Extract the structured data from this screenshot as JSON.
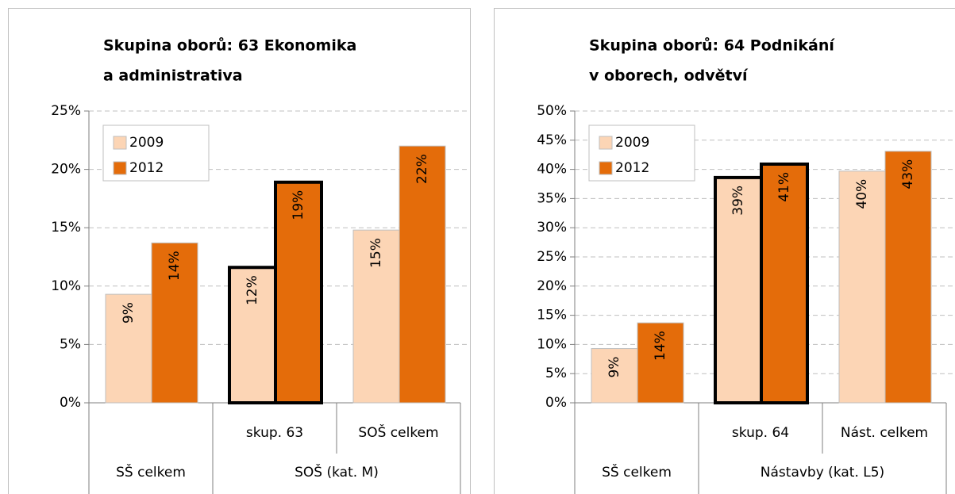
{
  "chart_data": [
    {
      "type": "bar",
      "title": [
        "Skupina oborů: 63 Ekonomika",
        "a administrativa"
      ],
      "categories": [
        null,
        "skup. 63",
        "SOŠ celkem"
      ],
      "groups": [
        {
          "label": "SŠ celkem",
          "size": 1
        },
        {
          "label": "SOŠ (kat. M)",
          "size": 2
        }
      ],
      "series": [
        {
          "name": "2009",
          "color": "#fcd5b5",
          "values": [
            9.3,
            11.6,
            14.8
          ],
          "value_labels": [
            "9%",
            "12%",
            "15%"
          ]
        },
        {
          "name": "2012",
          "color": "#e46c0a",
          "values": [
            13.7,
            18.9,
            22.0
          ],
          "value_labels": [
            "14%",
            "19%",
            "22%"
          ]
        }
      ],
      "highlight": [
        1
      ],
      "ylim": [
        0,
        25
      ],
      "yticks": [
        {
          "value": 0,
          "label": "0%"
        },
        {
          "value": 5,
          "label": "5%"
        },
        {
          "value": 10,
          "label": "10%"
        },
        {
          "value": 15,
          "label": "15%"
        },
        {
          "value": 20,
          "label": "20%"
        },
        {
          "value": 25,
          "label": "25%"
        }
      ],
      "grid": true,
      "legend": "upper left"
    },
    {
      "type": "bar",
      "title": [
        "Skupina oborů: 64 Podnikání",
        "v oborech, odvětví"
      ],
      "categories": [
        null,
        "skup. 64",
        "Nást. celkem"
      ],
      "groups": [
        {
          "label": "SŠ celkem",
          "size": 1
        },
        {
          "label": "Nástavby (kat. L5)",
          "size": 2
        }
      ],
      "series": [
        {
          "name": "2009",
          "color": "#fcd5b5",
          "values": [
            9.3,
            38.6,
            39.7
          ],
          "value_labels": [
            "9%",
            "39%",
            "40%"
          ]
        },
        {
          "name": "2012",
          "color": "#e46c0a",
          "values": [
            13.7,
            40.9,
            43.1
          ],
          "value_labels": [
            "14%",
            "41%",
            "43%"
          ]
        }
      ],
      "highlight": [
        1
      ],
      "ylim": [
        0,
        50
      ],
      "yticks": [
        {
          "value": 0,
          "label": "0%"
        },
        {
          "value": 5,
          "label": "5%"
        },
        {
          "value": 10,
          "label": "10%"
        },
        {
          "value": 15,
          "label": "15%"
        },
        {
          "value": 20,
          "label": "20%"
        },
        {
          "value": 25,
          "label": "25%"
        },
        {
          "value": 30,
          "label": "30%"
        },
        {
          "value": 35,
          "label": "35%"
        },
        {
          "value": 40,
          "label": "40%"
        },
        {
          "value": 45,
          "label": "45%"
        },
        {
          "value": 50,
          "label": "50%"
        }
      ],
      "grid": true,
      "legend": "upper left"
    }
  ]
}
